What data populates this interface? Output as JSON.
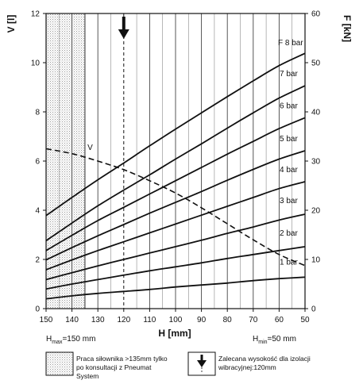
{
  "chart_data": {
    "type": "line",
    "y_left_label": "V [l]",
    "y_right_label": "F [kN]",
    "x_label": "H [mm]",
    "x_ticks": [
      150,
      140,
      130,
      120,
      110,
      100,
      90,
      80,
      70,
      60,
      50
    ],
    "x_reversed": true,
    "xlim": [
      150,
      50
    ],
    "ylim_left": [
      0,
      12
    ],
    "ylim_right": [
      0,
      60
    ],
    "y_left_ticks": [
      0,
      2,
      4,
      6,
      8,
      10,
      12
    ],
    "y_right_ticks": [
      0,
      10,
      20,
      30,
      40,
      50,
      60
    ],
    "grid": true,
    "hmax_label": {
      "main": "H",
      "sub": "max",
      "rest": "=150 mm"
    },
    "hmin_label": {
      "main": "H",
      "sub": "min",
      "rest": "=50 mm"
    },
    "recommended_height": 120,
    "hatched_region": [
      150,
      135
    ],
    "force_series": [
      {
        "name": "1 bar",
        "axis": "right",
        "x": [
          150,
          140,
          130,
          120,
          110,
          100,
          90,
          80,
          70,
          60,
          50
        ],
        "values": [
          2.0,
          2.6,
          3.1,
          3.5,
          3.9,
          4.4,
          4.8,
          5.2,
          5.7,
          6.1,
          6.4
        ]
      },
      {
        "name": "2 bar",
        "axis": "right",
        "x": [
          150,
          140,
          130,
          120,
          110,
          100,
          90,
          80,
          70,
          60,
          50
        ],
        "values": [
          4.0,
          5.0,
          5.9,
          6.8,
          7.7,
          8.5,
          9.3,
          10.2,
          11.0,
          11.8,
          12.6
        ]
      },
      {
        "name": "3 bar",
        "axis": "right",
        "x": [
          150,
          140,
          130,
          120,
          110,
          100,
          90,
          80,
          70,
          60,
          50
        ],
        "values": [
          5.9,
          7.3,
          8.7,
          10.0,
          11.3,
          12.6,
          13.9,
          15.3,
          16.6,
          18.0,
          19.2
        ]
      },
      {
        "name": "4 bar",
        "axis": "right",
        "x": [
          150,
          140,
          130,
          120,
          110,
          100,
          90,
          80,
          70,
          60,
          50
        ],
        "values": [
          7.9,
          9.9,
          11.8,
          13.6,
          15.4,
          17.2,
          19.0,
          20.8,
          22.6,
          24.4,
          25.8
        ]
      },
      {
        "name": "5 bar",
        "axis": "right",
        "x": [
          150,
          140,
          130,
          120,
          110,
          100,
          90,
          80,
          70,
          60,
          50
        ],
        "values": [
          9.9,
          12.4,
          14.8,
          17.1,
          19.4,
          21.6,
          23.8,
          26.1,
          28.3,
          30.4,
          32.1
        ]
      },
      {
        "name": "6 bar",
        "axis": "right",
        "x": [
          150,
          140,
          130,
          120,
          110,
          100,
          90,
          80,
          70,
          60,
          50
        ],
        "values": [
          11.8,
          14.9,
          17.9,
          20.6,
          23.3,
          26.0,
          28.7,
          31.4,
          34.0,
          36.6,
          38.8
        ]
      },
      {
        "name": "7 bar",
        "axis": "right",
        "x": [
          150,
          140,
          130,
          120,
          110,
          100,
          90,
          80,
          70,
          60,
          50
        ],
        "values": [
          13.8,
          17.4,
          20.9,
          24.1,
          27.2,
          30.4,
          33.5,
          36.7,
          39.8,
          42.8,
          45.3
        ]
      },
      {
        "name": "F 8 bar",
        "axis": "right",
        "x": [
          150,
          140,
          130,
          120,
          110,
          100,
          90,
          80,
          70,
          60,
          50
        ],
        "values": [
          18.9,
          22.6,
          26.2,
          29.6,
          33.1,
          36.5,
          39.8,
          43.1,
          46.3,
          49.4,
          51.9
        ]
      }
    ],
    "volume_series": {
      "name": "V",
      "axis": "left",
      "style": "dashed",
      "x": [
        150,
        140,
        130,
        120,
        110,
        100,
        90,
        80,
        70,
        60,
        50
      ],
      "values": [
        6.5,
        6.3,
        6.0,
        5.65,
        5.2,
        4.7,
        4.1,
        3.45,
        2.8,
        2.2,
        1.75
      ]
    }
  },
  "legend": {
    "hatched_text": "Praca siłownika >135mm tylko po konsultacji z Pneumat System",
    "arrow_text": "Zalecana wysokość dla izolacji wibracyjnej:120mm"
  }
}
